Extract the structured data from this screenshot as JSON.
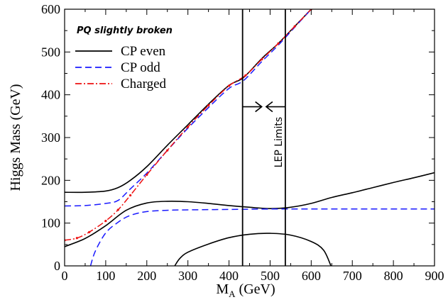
{
  "chart_data": {
    "type": "line",
    "title": "",
    "xlabel": "M",
    "xlabel_sub": "A",
    "xlabel_units": " (GeV)",
    "ylabel": "Higgs Mass (GeV)",
    "xlim": [
      0,
      900
    ],
    "ylim": [
      0,
      600
    ],
    "xticks": [
      0,
      100,
      200,
      300,
      400,
      500,
      600,
      700,
      800,
      900
    ],
    "yticks": [
      0,
      100,
      200,
      300,
      400,
      500,
      600
    ],
    "grid": false,
    "legend_title": "PQ slightly broken",
    "legend_position": "top-left",
    "series": [
      {
        "name": "CP even",
        "color": "#000000",
        "style": "solid",
        "branches": [
          {
            "x": [
              0,
              50,
              100,
              130,
              160,
              200,
              250,
              300,
              350,
              400,
              435,
              480,
              520,
              560,
              600
            ],
            "y": [
              172,
              172,
              175,
              183,
              200,
              232,
              282,
              330,
              378,
              422,
              440,
              485,
              520,
              560,
              600
            ]
          },
          {
            "x": [
              0,
              50,
              100,
              150,
              200,
              250,
              300,
              350,
              400,
              450,
              500,
              550,
              600,
              650,
              700,
              750,
              800,
              850,
              900
            ],
            "y": [
              45,
              64,
              94,
              130,
              147,
              151,
              150,
              146,
              141,
              137,
              134,
              137,
              146,
              160,
              171,
              183,
              195,
              206,
              218
            ]
          },
          {
            "x": [
              268,
              280,
              300,
              350,
              400,
              450,
              500,
              550,
              600,
              630,
              648
            ],
            "y": [
              0,
              17,
              32,
              51,
              66,
              74,
              76,
              72,
              57,
              37,
              0
            ]
          }
        ]
      },
      {
        "name": "CP odd",
        "color": "#1a1aff",
        "style": "dashed",
        "branches": [
          {
            "x": [
              0,
              50,
              100,
              130,
              160,
              200,
              250,
              300,
              350,
              400,
              435,
              480,
              520,
              560,
              600
            ],
            "y": [
              140,
              141,
              146,
              153,
              180,
              217,
              270,
              322,
              370,
              415,
              433,
              478,
              516,
              558,
              600
            ]
          },
          {
            "x": [
              63,
              75,
              100,
              130,
              160,
              200,
              250,
              300,
              400,
              500,
              600,
              700,
              800,
              900
            ],
            "y": [
              0,
              35,
              77,
              102,
              118,
              127,
              130,
              131,
              132,
              133,
              133,
              133,
              133,
              133
            ]
          }
        ]
      },
      {
        "name": "Charged",
        "color": "#ee1111",
        "style": "dashdot",
        "branches": [
          {
            "x": [
              0,
              30,
              60,
              100,
              130,
              160,
              200,
              250,
              300,
              350,
              400,
              440,
              480,
              520,
              560,
              600
            ],
            "y": [
              60,
              65,
              79,
              105,
              131,
              165,
              213,
              270,
              325,
              375,
              421,
              445,
              483,
              520,
              560,
              600
            ]
          }
        ]
      }
    ],
    "vlines": [
      433,
      537
    ],
    "annotations": {
      "lep_label": "LEP Limits",
      "arrow_y": 372
    }
  }
}
